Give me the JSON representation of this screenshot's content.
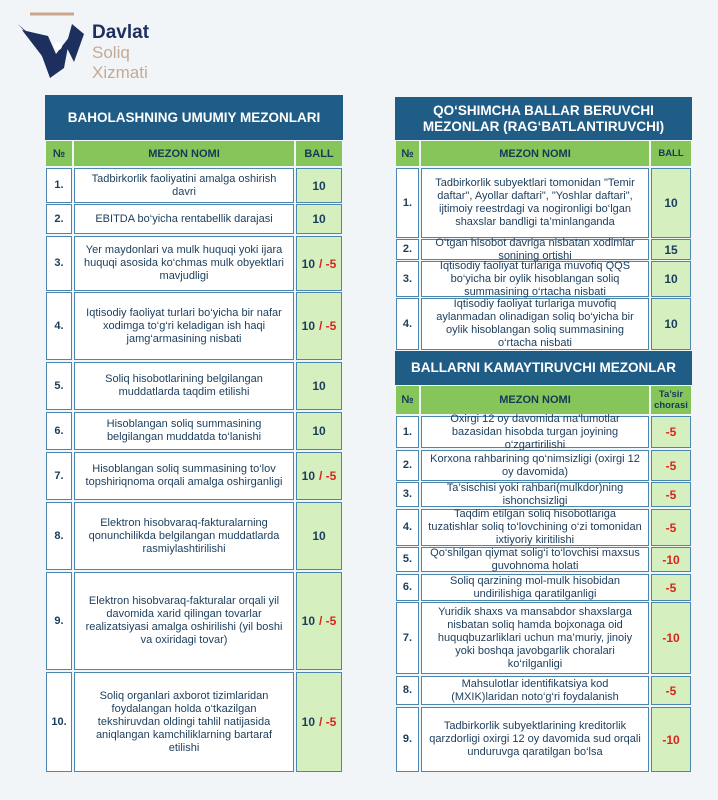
{
  "logo": {
    "line1": "Davlat",
    "line2": "Soliq",
    "line3": "Xizmati"
  },
  "left_table": {
    "title": "BAHOLASHNING UMUMIY MEZONLARI",
    "headers": [
      "№",
      "MEZON NOMI",
      "BALL"
    ],
    "rows": [
      {
        "no": "1.",
        "name": "Tadbirkorlik faoliyatini amalga oshirish davri",
        "ball": "10"
      },
      {
        "no": "2.",
        "name": "EBITDA bo‘yicha rentabellik darajasi",
        "ball": "10"
      },
      {
        "no": "3.",
        "name": "Yer maydonlari va mulk huquqi yoki ijara huquqi asosida ko‘chmas mulk obyektlari mavjudligi",
        "ball": "10",
        "penalty": "/ -5"
      },
      {
        "no": "4.",
        "name": "Iqtisodiy faoliyat turlari bo‘yicha bir nafar xodimga to‘g‘ri keladigan ish haqi jamg‘armasining nisbati",
        "ball": "10",
        "penalty": "/ -5"
      },
      {
        "no": "5.",
        "name": "Soliq hisobotlarining belgilangan muddatlarda taqdim etilishi",
        "ball": "10"
      },
      {
        "no": "6.",
        "name": "Hisoblangan soliq summasining belgilangan muddatda to‘lanishi",
        "ball": "10"
      },
      {
        "no": "7.",
        "name": "Hisoblangan soliq summasining to‘lov topshiriqnoma orqali amalga oshirganligi",
        "ball": "10",
        "penalty": "/ -5"
      },
      {
        "no": "8.",
        "name": "Elektron hisobvaraq-fakturalarning qonunchilikda belgilangan muddatlarda rasmiylashtirilishi",
        "ball": "10"
      },
      {
        "no": "9.",
        "name": "Elektron hisobvaraq-fakturalar orqali yil davomida xarid qilingan tovarlar realizatsiyasi amalga oshirilishi (yil boshi va oxiridagi tovar)",
        "ball": "10",
        "penalty": "/ -5"
      },
      {
        "no": "10.",
        "name": "Soliq organlari axborot tizimlaridan foydalangan holda o‘tkazilgan tekshiruvdan oldingi tahlil natijasida aniqlangan kamchiliklarning bartaraf etilishi",
        "ball": "10",
        "penalty": "/ -5"
      }
    ]
  },
  "bonus_table": {
    "title": "QO‘SHIMCHA BALLAR BERUVCHI MEZONLAR (RAG‘BATLANTIRUVCHI)",
    "headers": [
      "№",
      "MEZON NOMI",
      "BALL"
    ],
    "rows": [
      {
        "no": "1.",
        "name": "Tadbirkorlik subyektlari tomonidan \"Temir daftar\", Ayollar daftari\", \"Yoshlar daftari\", ijtimoiy reestrdagi va nogironligi bo‘lgan shaxslar bandligi ta’minlanganda",
        "ball": "10"
      },
      {
        "no": "2.",
        "name": "O‘tgan hisobot davriga nisbatan xodimlar sonining ortishi",
        "ball": "15"
      },
      {
        "no": "3.",
        "name": "Iqtisodiy faoliyat turlariga muvofiq QQS bo‘yicha bir oylik hisoblangan soliq summasining o‘rtacha nisbati",
        "ball": "10"
      },
      {
        "no": "4.",
        "name": "Iqtisodiy faoliyat turlariga muvofiq aylanmadan olinadigan soliq bo‘yicha bir oylik hisoblangan soliq summasining o‘rtacha nisbati",
        "ball": "10"
      }
    ]
  },
  "penalty_table": {
    "title": "BALLARNI KAMAYTIRUVCHI MEZONLAR",
    "headers": [
      "№",
      "MEZON NOMI",
      "Ta’sir chorasi"
    ],
    "rows": [
      {
        "no": "1.",
        "name": "Oxirgi 12 oy davomida ma’lumotlar bazasidan hisobda turgan joyining o‘zgartirilishi",
        "effect": "-5"
      },
      {
        "no": "2.",
        "name": "Korxona rahbarining qo‘nimsizligi (oxirgi 12 oy davomida)",
        "effect": "-5"
      },
      {
        "no": "3.",
        "name": "Ta’sischisi yoki rahbari(mulkdor)ning ishonchsizligi",
        "effect": "-5"
      },
      {
        "no": "4.",
        "name": "Taqdim etilgan soliq hisobotlariga tuzatishlar soliq to‘lovchining o‘zi tomonidan ixtiyoriy kiritilishi",
        "effect": "-5"
      },
      {
        "no": "5.",
        "name": "Qo‘shilgan qiymat solig‘i to‘lovchisi maxsus guvohnoma holati",
        "effect": "-10"
      },
      {
        "no": "6.",
        "name": "Soliq qarzining mol-mulk hisobidan undirilishiga qaratilganligi",
        "effect": "-5"
      },
      {
        "no": "7.",
        "name": "Yuridik shaxs va mansabdor shaxslarga nisbatan soliq hamda bojxonaga oid huquqbuzarliklari uchun ma’muriy, jinoiy yoki boshqa javobgarlik choralari ko‘rilganligi",
        "effect": "-10"
      },
      {
        "no": "8.",
        "name": "Mahsulotlar identifikatsiya kod (MXIK)laridan noto‘g‘ri foydalanish",
        "effect": "-5"
      },
      {
        "no": "9.",
        "name": "Tadbirkorlik subyektlarining kreditorlik qarzdorligi oxirgi 12 oy davomida sud orqali unduruvga qaratilgan bo‘lsa",
        "effect": "-10"
      }
    ]
  }
}
